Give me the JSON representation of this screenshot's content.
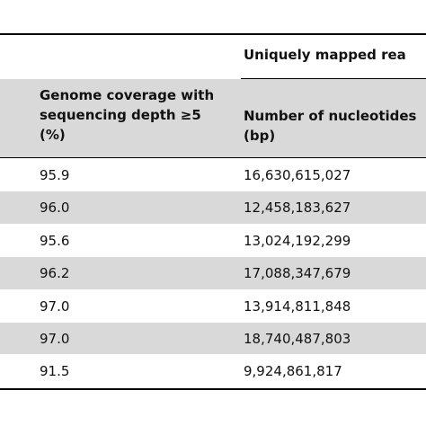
{
  "table": {
    "group_header": "Uniquely mapped rea",
    "columns": [
      "Genome coverage with sequencing depth ≥5 (%)",
      "Number of nucleotides (bp)"
    ],
    "rows": [
      {
        "coverage": "95.9",
        "nucleotides": "16,630,615,027"
      },
      {
        "coverage": "96.0",
        "nucleotides": "12,458,183,627"
      },
      {
        "coverage": "95.6",
        "nucleotides": "13,024,192,299"
      },
      {
        "coverage": "96.2",
        "nucleotides": "17,088,347,679"
      },
      {
        "coverage": "97.0",
        "nucleotides": "13,914,811,848"
      },
      {
        "coverage": "97.0",
        "nucleotides": "18,740,487,803"
      },
      {
        "coverage": "91.5",
        "nucleotides": "9,924,861,817"
      }
    ]
  }
}
